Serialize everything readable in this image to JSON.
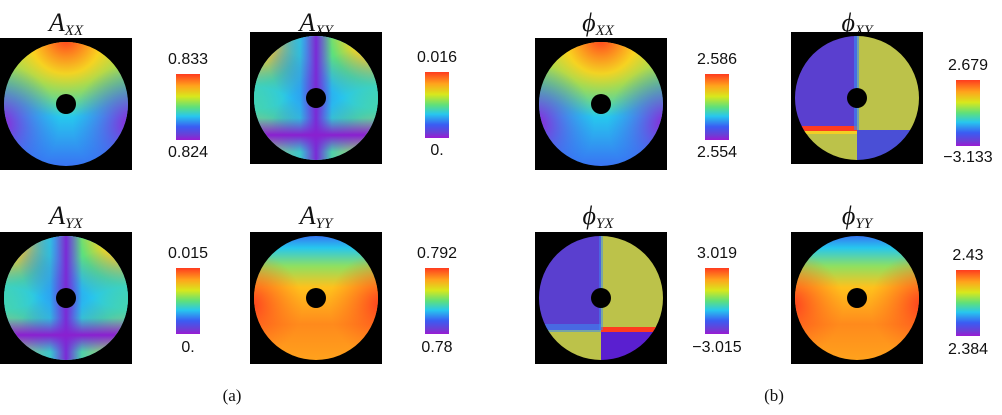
{
  "panels": [
    {
      "id": "axx",
      "title_main": "A",
      "title_sub": "XX",
      "max": "0.833",
      "min": "0.824"
    },
    {
      "id": "axy",
      "title_main": "A",
      "title_sub": "XY",
      "max": "0.016",
      "min": "0."
    },
    {
      "id": "ayx",
      "title_main": "A",
      "title_sub": "YX",
      "max": "0.015",
      "min": "0."
    },
    {
      "id": "ayy",
      "title_main": "A",
      "title_sub": "YY",
      "max": "0.792",
      "min": "0.78"
    },
    {
      "id": "pxx",
      "title_main": "ϕ",
      "title_sub": "XX",
      "max": "2.586",
      "min": "2.554"
    },
    {
      "id": "pxy",
      "title_main": "ϕ",
      "title_sub": "XY",
      "max": "2.679",
      "min": "−3.133"
    },
    {
      "id": "pyx",
      "title_main": "ϕ",
      "title_sub": "YX",
      "max": "3.019",
      "min": "−3.015"
    },
    {
      "id": "pyy",
      "title_main": "ϕ",
      "title_sub": "YY",
      "max": "2.43",
      "min": "2.384"
    }
  ],
  "captions": {
    "a": "(a)",
    "b": "(b)"
  },
  "colors": {
    "background": "#000000",
    "hole": "#000000",
    "phase_purple": "#5a3fcf",
    "phase_olive": "#bcc24a"
  }
}
